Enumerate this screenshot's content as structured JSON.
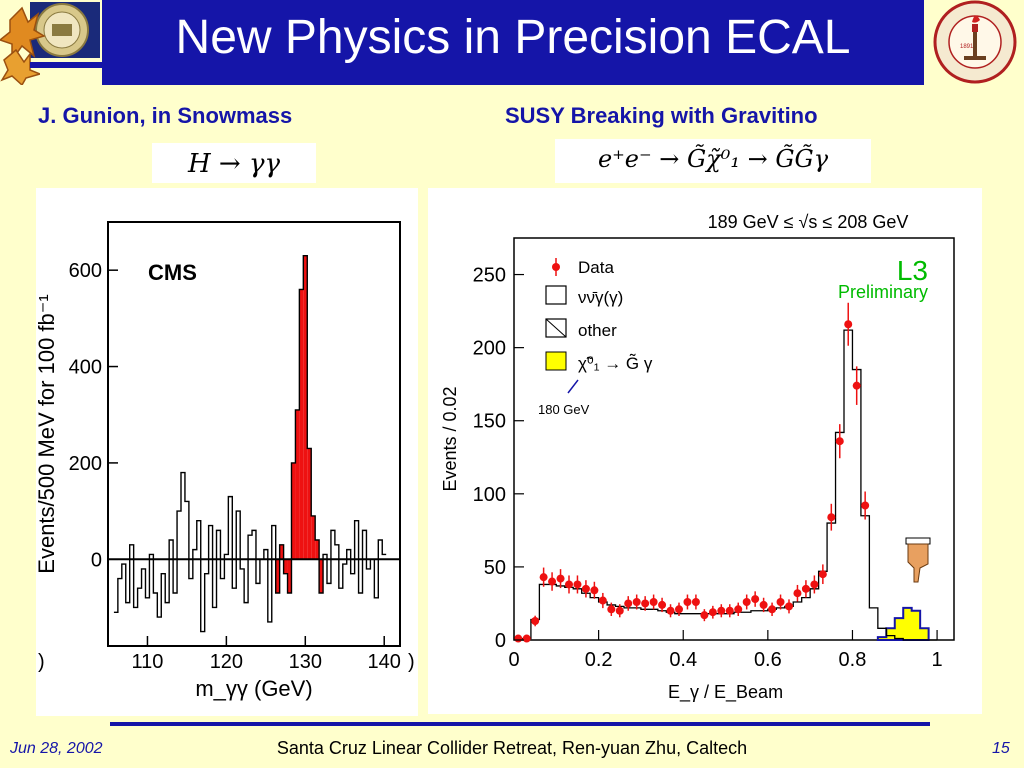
{
  "slide": {
    "title": "New Physics in Precision ECAL",
    "left_heading": "J. Gunion,  in Snowmass",
    "right_heading": "SUSY Breaking with Gravitino",
    "left_formula": "H → γγ",
    "right_formula": "e⁺e⁻ → G̃χ̃⁰₁ → G̃G̃γ",
    "left_logo_text": "UNIVERSITY OF CALIFORNIA",
    "right_logo_text": "CALIFORNIA INSTITUTE OF TECHNOLOGY",
    "right_logo_year": "1891"
  },
  "footer": {
    "date": "Jun 28, 2002",
    "center": "Santa Cruz Linear Collider  Retreat, Ren-yuan Zhu, Caltech",
    "page": "15"
  },
  "colors": {
    "title_bg": "#1515a8",
    "slide_bg": "#ffffcc",
    "accent_red": "#ee1111",
    "signal_yellow": "#ffff00",
    "l3_green": "#00bb00"
  },
  "chart_data": [
    {
      "type": "bar",
      "label": "CMS",
      "xlabel": "m_γγ (GeV)",
      "ylabel": "Events/500 MeV for 100 fb⁻¹",
      "xlim": [
        105,
        142
      ],
      "ylim": [
        -180,
        700
      ],
      "xticks": [
        110,
        120,
        130,
        140
      ],
      "yticks": [
        0,
        200,
        400,
        600
      ],
      "edge_tick_labels": [
        ")",
        ")"
      ],
      "background_subtracted": {
        "x": [
          106,
          106.5,
          107,
          107.5,
          108,
          108.5,
          109,
          109.5,
          110,
          110.5,
          111,
          111.5,
          112,
          112.5,
          113,
          113.5,
          114,
          114.5,
          115,
          115.5,
          116,
          116.5,
          117,
          117.5,
          118,
          118.5,
          119,
          119.5,
          120,
          120.5,
          121,
          121.5,
          122,
          122.5,
          123,
          123.5,
          124,
          124.5,
          125,
          125.5,
          126,
          126.5,
          127,
          127.5,
          128,
          128.5,
          129,
          129.5,
          130,
          130.5,
          131,
          131.5,
          132,
          132.5,
          133,
          133.5,
          134,
          134.5,
          135,
          135.5,
          136,
          136.5,
          137,
          137.5,
          138,
          138.5,
          139,
          139.5,
          140
        ],
        "values": [
          -110,
          -40,
          -10,
          -90,
          30,
          -100,
          -60,
          -20,
          -80,
          10,
          -70,
          -120,
          -30,
          -90,
          40,
          -70,
          100,
          180,
          120,
          -40,
          20,
          80,
          -150,
          -30,
          70,
          -100,
          60,
          -40,
          10,
          130,
          -60,
          100,
          -20,
          -90,
          50,
          60,
          -50,
          0,
          20,
          -130,
          70,
          -70,
          30,
          -30,
          -70,
          200,
          310,
          560,
          630,
          230,
          90,
          40,
          -70,
          10,
          -50,
          60,
          30,
          -60,
          -10,
          20,
          -30,
          80,
          -70,
          60,
          -20,
          0,
          -80,
          40,
          10
        ],
        "signal_highlight_range": [
          126.5,
          132
        ]
      }
    },
    {
      "type": "bar",
      "title": "189 GeV ≤ √s ≤ 208 GeV",
      "experiment": "L3",
      "status": "Preliminary",
      "xlabel": "E_γ / E_Beam",
      "ylabel": "Events / 0.02",
      "xlim": [
        0,
        1.04
      ],
      "ylim": [
        0,
        275
      ],
      "xticks": [
        0,
        0.2,
        0.4,
        0.6,
        0.8,
        1
      ],
      "yticks": [
        0,
        50,
        100,
        150,
        200,
        250
      ],
      "legend": [
        {
          "label": "Data",
          "marker": "red point with error bar"
        },
        {
          "label": "νν̄γ(γ)",
          "marker": "open box"
        },
        {
          "label": "other",
          "marker": "hatched box"
        },
        {
          "label": "χ̃⁰₁ → G̃ γ",
          "marker": "yellow box",
          "mass_note": "180 GeV"
        }
      ],
      "mc_nunugamma": {
        "bin_edges": [
          0,
          0.02,
          0.04,
          0.06,
          0.08,
          0.1,
          0.12,
          0.14,
          0.16,
          0.18,
          0.2,
          0.22,
          0.24,
          0.26,
          0.28,
          0.3,
          0.32,
          0.34,
          0.36,
          0.38,
          0.4,
          0.42,
          0.44,
          0.46,
          0.48,
          0.5,
          0.52,
          0.54,
          0.56,
          0.58,
          0.6,
          0.62,
          0.64,
          0.66,
          0.68,
          0.7,
          0.72,
          0.74,
          0.76,
          0.78,
          0.8,
          0.82,
          0.84,
          0.86,
          0.88,
          0.9,
          0.92,
          0.94,
          0.96,
          0.98,
          1.0
        ],
        "values": [
          1,
          1,
          14,
          38,
          38,
          37,
          36,
          35,
          32,
          29,
          26,
          24,
          23,
          22,
          22,
          21,
          21,
          20,
          19,
          18,
          18,
          18,
          18,
          18,
          18,
          18,
          19,
          19,
          20,
          20,
          21,
          22,
          23,
          26,
          29,
          35,
          47,
          80,
          142,
          212,
          185,
          85,
          22,
          8,
          3,
          1,
          0,
          0,
          0,
          0
        ]
      },
      "signal_gravitino": {
        "bin_edges": [
          0.86,
          0.88,
          0.9,
          0.92,
          0.94,
          0.96,
          0.98
        ],
        "values": [
          2,
          8,
          15,
          22,
          20,
          8
        ]
      },
      "data_points": {
        "x": [
          0.01,
          0.03,
          0.05,
          0.07,
          0.09,
          0.11,
          0.13,
          0.15,
          0.17,
          0.19,
          0.21,
          0.23,
          0.25,
          0.27,
          0.29,
          0.31,
          0.33,
          0.35,
          0.37,
          0.39,
          0.41,
          0.43,
          0.45,
          0.47,
          0.49,
          0.51,
          0.53,
          0.55,
          0.57,
          0.59,
          0.61,
          0.63,
          0.65,
          0.67,
          0.69,
          0.71,
          0.73,
          0.75,
          0.77,
          0.79,
          0.81,
          0.83,
          0.85,
          0.87,
          0.89,
          0.91,
          0.93,
          0.95,
          0.97,
          0.99
        ],
        "y": [
          1,
          1,
          13,
          43,
          40,
          42,
          38,
          38,
          35,
          34,
          27,
          21,
          20,
          25,
          26,
          25,
          26,
          24,
          20,
          21,
          26,
          26,
          17,
          19,
          20,
          20,
          21,
          26,
          28,
          24,
          21,
          26,
          23,
          32,
          35,
          38,
          45,
          84,
          136,
          216,
          174,
          92,
          0,
          0,
          0,
          0,
          0,
          0,
          0,
          0
        ]
      }
    }
  ]
}
